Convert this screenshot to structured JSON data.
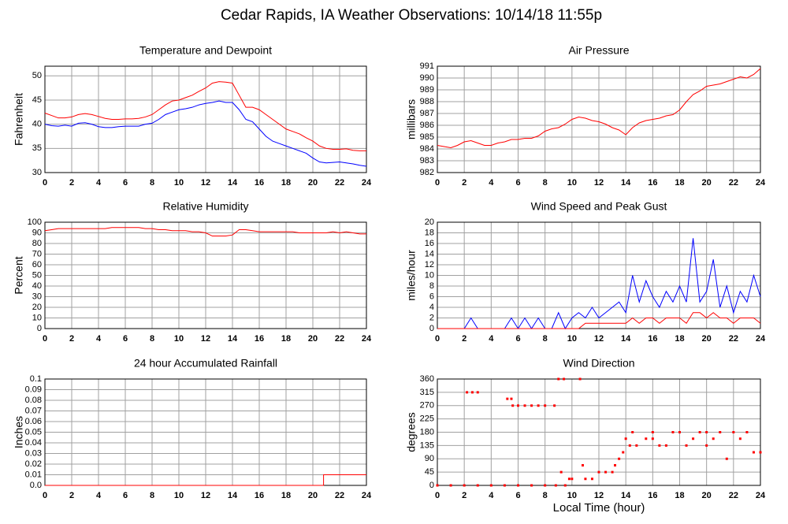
{
  "title": "Cedar Rapids, IA Weather Observations: 10/14/18 11:55p",
  "chart_data": [
    {
      "type": "line",
      "title": "Temperature and Dewpoint",
      "ylabel": "Fahrenheit",
      "xlim": [
        0,
        24
      ],
      "xticks": [
        0,
        2,
        4,
        6,
        8,
        10,
        12,
        14,
        16,
        18,
        20,
        22,
        24
      ],
      "ylim": [
        30,
        52
      ],
      "yticks": [
        30,
        35,
        40,
        45,
        50
      ],
      "grid": true,
      "x": [
        0,
        0.5,
        1,
        1.5,
        2,
        2.5,
        3,
        3.5,
        4,
        4.5,
        5,
        5.5,
        6,
        6.5,
        7,
        7.5,
        8,
        8.5,
        9,
        9.5,
        10,
        10.5,
        11,
        11.5,
        12,
        12.5,
        13,
        13.5,
        14,
        14.5,
        15,
        15.5,
        16,
        16.5,
        17,
        17.5,
        18,
        18.5,
        19,
        19.5,
        20,
        20.5,
        21,
        21.5,
        22,
        22.5,
        23,
        23.5,
        24
      ],
      "series": [
        {
          "color": "#ff0000",
          "values": [
            42.3,
            41.8,
            41.3,
            41.3,
            41.5,
            42,
            42.2,
            42,
            41.6,
            41.2,
            41,
            41,
            41.1,
            41.1,
            41.2,
            41.5,
            42,
            43,
            44,
            44.8,
            45,
            45.5,
            46,
            46.8,
            47.5,
            48.5,
            48.8,
            48.7,
            48.5,
            46,
            43.5,
            43.5,
            43,
            42,
            41,
            40,
            39,
            38.5,
            38,
            37.2,
            36.5,
            35.5,
            35,
            34.8,
            34.8,
            34.9,
            34.6,
            34.5,
            34.5
          ]
        },
        {
          "color": "#0000ff",
          "values": [
            40,
            39.7,
            39.6,
            39.8,
            39.6,
            40.2,
            40.3,
            40,
            39.5,
            39.3,
            39.3,
            39.5,
            39.6,
            39.6,
            39.6,
            40,
            40.2,
            41,
            42,
            42.5,
            43,
            43.2,
            43.5,
            44,
            44.3,
            44.5,
            44.8,
            44.5,
            44.5,
            43,
            41,
            40.5,
            39,
            37.5,
            36.5,
            36,
            35.5,
            35,
            34.5,
            34,
            33,
            32.2,
            32,
            32.1,
            32.2,
            32,
            31.8,
            31.5,
            31.3
          ]
        }
      ]
    },
    {
      "type": "line",
      "title": "Air Pressure",
      "ylabel": "millibars",
      "xlim": [
        0,
        24
      ],
      "xticks": [
        0,
        2,
        4,
        6,
        8,
        10,
        12,
        14,
        16,
        18,
        20,
        22,
        24
      ],
      "ylim": [
        982,
        991
      ],
      "yticks": [
        982,
        983,
        984,
        985,
        986,
        987,
        988,
        989,
        990,
        991
      ],
      "grid": true,
      "x": [
        0,
        0.5,
        1,
        1.5,
        2,
        2.5,
        3,
        3.5,
        4,
        4.5,
        5,
        5.5,
        6,
        6.5,
        7,
        7.5,
        8,
        8.5,
        9,
        9.5,
        10,
        10.5,
        11,
        11.5,
        12,
        12.5,
        13,
        13.5,
        14,
        14.5,
        15,
        15.5,
        16,
        16.5,
        17,
        17.5,
        18,
        18.5,
        19,
        19.5,
        20,
        20.5,
        21,
        21.5,
        22,
        22.5,
        23,
        23.5,
        24
      ],
      "series": [
        {
          "color": "#ff0000",
          "values": [
            984.3,
            984.2,
            984.1,
            984.3,
            984.6,
            984.7,
            984.5,
            984.3,
            984.3,
            984.5,
            984.6,
            984.8,
            984.8,
            984.9,
            984.9,
            985.1,
            985.5,
            985.7,
            985.8,
            986.1,
            986.5,
            986.7,
            986.6,
            986.4,
            986.3,
            986.1,
            985.8,
            985.6,
            985.2,
            985.8,
            986.2,
            986.4,
            986.5,
            986.6,
            986.8,
            986.9,
            987.3,
            988,
            988.6,
            988.9,
            989.3,
            989.4,
            989.5,
            989.7,
            989.9,
            990.1,
            990,
            990.3,
            990.8
          ]
        }
      ]
    },
    {
      "type": "line",
      "title": "Relative Humidity",
      "ylabel": "Percent",
      "xlim": [
        0,
        24
      ],
      "xticks": [
        0,
        2,
        4,
        6,
        8,
        10,
        12,
        14,
        16,
        18,
        20,
        22,
        24
      ],
      "ylim": [
        0,
        100
      ],
      "yticks": [
        0,
        10,
        20,
        30,
        40,
        50,
        60,
        70,
        80,
        90,
        100
      ],
      "grid": true,
      "x": [
        0,
        0.5,
        1,
        1.5,
        2,
        2.5,
        3,
        3.5,
        4,
        4.5,
        5,
        5.5,
        6,
        6.5,
        7,
        7.5,
        8,
        8.5,
        9,
        9.5,
        10,
        10.5,
        11,
        11.5,
        12,
        12.5,
        13,
        13.5,
        14,
        14.5,
        15,
        15.5,
        16,
        16.5,
        17,
        17.5,
        18,
        18.5,
        19,
        19.5,
        20,
        20.5,
        21,
        21.5,
        22,
        22.5,
        23,
        23.5,
        24
      ],
      "series": [
        {
          "color": "#ff0000",
          "values": [
            92,
            93,
            94,
            94,
            94,
            94,
            94,
            94,
            94,
            94,
            95,
            95,
            95,
            95,
            95,
            94,
            94,
            93,
            93,
            92,
            92,
            92,
            91,
            91,
            90,
            87,
            87,
            87,
            88,
            93,
            93,
            92,
            91,
            91,
            91,
            91,
            91,
            91,
            90,
            90,
            90,
            90,
            90,
            91,
            90,
            91,
            90,
            89,
            89
          ]
        }
      ]
    },
    {
      "type": "line",
      "title": "Wind Speed and Peak Gust",
      "ylabel": "miles/hour",
      "xlim": [
        0,
        24
      ],
      "xticks": [
        0,
        2,
        4,
        6,
        8,
        10,
        12,
        14,
        16,
        18,
        20,
        22,
        24
      ],
      "ylim": [
        0,
        20
      ],
      "yticks": [
        0,
        2,
        4,
        6,
        8,
        10,
        12,
        14,
        16,
        18,
        20
      ],
      "grid": true,
      "x": [
        0,
        0.5,
        1,
        1.5,
        2,
        2.5,
        3,
        3.5,
        4,
        4.5,
        5,
        5.5,
        6,
        6.5,
        7,
        7.5,
        8,
        8.5,
        9,
        9.5,
        10,
        10.5,
        11,
        11.5,
        12,
        12.5,
        13,
        13.5,
        14,
        14.5,
        15,
        15.5,
        16,
        16.5,
        17,
        17.5,
        18,
        18.5,
        19,
        19.5,
        20,
        20.5,
        21,
        21.5,
        22,
        22.5,
        23,
        23.5,
        24
      ],
      "series": [
        {
          "color": "#0000ff",
          "values": [
            0,
            0,
            0,
            0,
            0,
            2,
            0,
            0,
            0,
            0,
            0,
            2,
            0,
            2,
            0,
            2,
            0,
            0,
            3,
            0,
            2,
            3,
            2,
            4,
            2,
            3,
            4,
            5,
            3,
            10,
            5,
            9,
            6,
            4,
            7,
            5,
            8,
            5,
            17,
            5,
            7,
            13,
            4,
            8,
            3,
            7,
            5,
            10,
            6
          ]
        },
        {
          "color": "#ff0000",
          "values": [
            0,
            0,
            0,
            0,
            0,
            0,
            0,
            0,
            0,
            0,
            0,
            0,
            0,
            0,
            0,
            0,
            0,
            0,
            0,
            0,
            0,
            0,
            1,
            1,
            1,
            1,
            1,
            1,
            1,
            2,
            1,
            2,
            2,
            1,
            2,
            2,
            2,
            1,
            3,
            3,
            2,
            3,
            2,
            2,
            1,
            2,
            2,
            2,
            1
          ]
        }
      ]
    },
    {
      "type": "line",
      "title": "24 hour Accumulated Rainfall",
      "ylabel": "Inches",
      "xlim": [
        0,
        24
      ],
      "xticks": [
        0,
        2,
        4,
        6,
        8,
        10,
        12,
        14,
        16,
        18,
        20,
        22,
        24
      ],
      "ylim": [
        0,
        0.1
      ],
      "yticks": [
        {
          "value": 0,
          "label": "0.0"
        },
        0.01,
        0.02,
        0.03,
        0.04,
        0.05,
        0.06,
        0.07,
        0.08,
        0.09,
        0.1
      ],
      "grid": true,
      "x": [
        0,
        20.8,
        20.8,
        24
      ],
      "series": [
        {
          "color": "#ff0000",
          "values": [
            0,
            0,
            0.01,
            0.01
          ]
        }
      ]
    },
    {
      "type": "scatter",
      "title": "Wind Direction",
      "ylabel": "degrees",
      "xlabel": "Local Time (hour)",
      "xlim": [
        0,
        24
      ],
      "xticks": [
        0,
        2,
        4,
        6,
        8,
        10,
        12,
        14,
        16,
        18,
        20,
        22,
        24
      ],
      "ylim": [
        0,
        360
      ],
      "yticks": [
        0,
        45,
        90,
        135,
        180,
        225,
        270,
        315,
        360
      ],
      "grid": true,
      "x": [
        0,
        1,
        2,
        2.2,
        2.6,
        3,
        3,
        4,
        5,
        5.2,
        5.5,
        5.6,
        6,
        6.5,
        7,
        7.5,
        8,
        8.7,
        6,
        7,
        8,
        8.8,
        9,
        9.4,
        9.2,
        9.5,
        9.8,
        10,
        10.6,
        10.8,
        11,
        11.5,
        12,
        12.5,
        13,
        13.2,
        13.5,
        13.8,
        14,
        14.3,
        14.5,
        14.8,
        15.5,
        16,
        16.5,
        17,
        17.5,
        18,
        18.5,
        19,
        19.5,
        20,
        20.5,
        21,
        21.5,
        22,
        22.5,
        23,
        23.5,
        24,
        16,
        20
      ],
      "series": [
        {
          "color": "#ff0000",
          "values": [
            0,
            0,
            0,
            315,
            315,
            315,
            0,
            0,
            0,
            293,
            293,
            270,
            270,
            270,
            270,
            270,
            270,
            270,
            0,
            0,
            0,
            0,
            360,
            360,
            45,
            0,
            22,
            22,
            360,
            68,
            22,
            22,
            45,
            45,
            45,
            68,
            90,
            112,
            158,
            135,
            180,
            135,
            158,
            158,
            135,
            135,
            180,
            180,
            135,
            158,
            180,
            135,
            158,
            180,
            90,
            180,
            158,
            180,
            112,
            112,
            180,
            180
          ]
        }
      ]
    }
  ]
}
